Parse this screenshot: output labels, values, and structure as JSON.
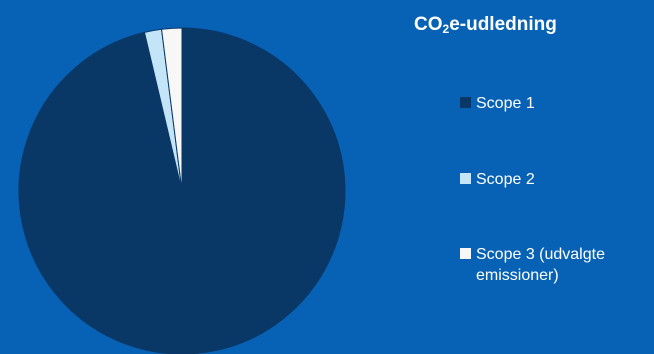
{
  "chart_data": {
    "type": "pie",
    "title_main": "CO",
    "title_sub": "2",
    "title_rest": "e-udledning",
    "series": [
      {
        "name": "Scope 1",
        "value": 96.3,
        "color": "#0a3866"
      },
      {
        "name": "Scope 2",
        "value": 1.7,
        "color": "#c4e4f8"
      },
      {
        "name": "Scope 3 (udvalgte emissioner)",
        "name_line1": "Scope 3 (udvalgte",
        "name_line2": "emissioner)",
        "value": 2.0,
        "color": "#f7f7f7"
      }
    ],
    "legend_position": "right",
    "start_angle": "top",
    "direction": "clockwise",
    "colors": {
      "background": "#0762b6",
      "slice_border": "#0762b6"
    }
  }
}
